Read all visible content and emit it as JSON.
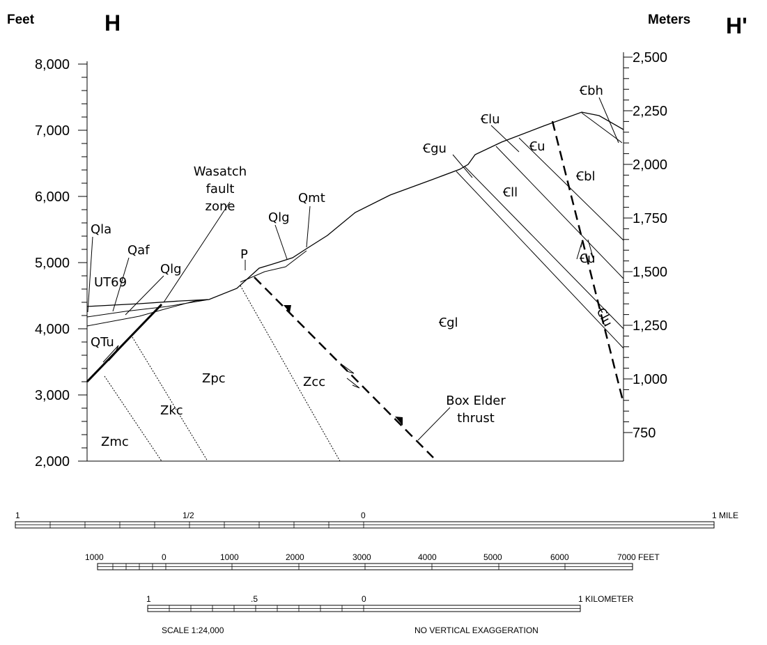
{
  "header": {
    "left_unit": "Feet",
    "left_end": "H",
    "right_unit": "Meters",
    "right_end": "H'"
  },
  "left_axis": {
    "labels": [
      "8,000",
      "7,000",
      "6,000",
      "5,000",
      "4,000",
      "3,000",
      "2,000"
    ]
  },
  "right_axis": {
    "labels": [
      "2,500",
      "2,250",
      "2,000",
      "1,750",
      "1,500",
      "1,250",
      "1,000",
      "750"
    ]
  },
  "map_labels": [
    "Qla",
    "Qaf",
    "Qlg",
    "UT69",
    "QTu",
    "Wasatch",
    "fault",
    "zone",
    "Qlg",
    "Qmt",
    "P",
    "Zpc",
    "Zkc",
    "Zmc",
    "Zcc",
    "Box Elder",
    "thrust",
    "Ꞓgl",
    "Ꞓgu",
    "Ꞓlu",
    "Ꞓu",
    "Ꞓbh",
    "Ꞓbl",
    "Ꞓll",
    "Ꞓu",
    "Ꞓlu"
  ],
  "scale_bars": {
    "mile": [
      "1",
      "1/2",
      "0",
      "1 MILE"
    ],
    "feet": [
      "1000",
      "0",
      "1000",
      "2000",
      "3000",
      "4000",
      "5000",
      "6000",
      "7000 FEET"
    ],
    "kilometer": [
      "1",
      ".5",
      "0",
      "1 KILOMETER"
    ]
  },
  "footer": {
    "scale": "SCALE 1:24,000",
    "note": "NO VERTICAL EXAGGERATION"
  }
}
